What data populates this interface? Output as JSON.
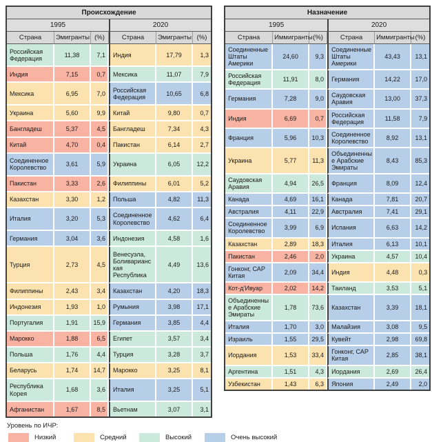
{
  "chart_data": {
    "type": "table",
    "colors": {
      "low": "#f9b3a2",
      "medium": "#fbe2af",
      "high": "#cce9de",
      "very_high": "#b7cee9",
      "header_bg": "#d9d9d9",
      "border_dark": "#3f3f3f"
    },
    "tables": [
      {
        "title": "Происхождение",
        "groups": [
          {
            "year": "1995",
            "columns": [
              "Страна",
              "Эмигранты",
              "(%)"
            ],
            "rows": [
              {
                "country": "Российская Федерация",
                "value": "11,38",
                "pct": "7,1",
                "hdi": "high"
              },
              {
                "country": "Индия",
                "value": "7,15",
                "pct": "0,7",
                "hdi": "low"
              },
              {
                "country": "Мексика",
                "value": "6,95",
                "pct": "7,0",
                "hdi": "medium"
              },
              {
                "country": "Украина",
                "value": "5,60",
                "pct": "9,9",
                "hdi": "medium"
              },
              {
                "country": "Бангладеш",
                "value": "5,37",
                "pct": "4,5",
                "hdi": "low"
              },
              {
                "country": "Китай",
                "value": "4,70",
                "pct": "0,4",
                "hdi": "low"
              },
              {
                "country": "Соединенное Королевство",
                "value": "3,61",
                "pct": "5,9",
                "hdi": "very_high"
              },
              {
                "country": "Пакистан",
                "value": "3,33",
                "pct": "2,6",
                "hdi": "low"
              },
              {
                "country": "Казахстан",
                "value": "3,30",
                "pct": "1,2",
                "hdi": "medium"
              },
              {
                "country": "Италия",
                "value": "3,20",
                "pct": "5,3",
                "hdi": "very_high"
              },
              {
                "country": "Германия",
                "value": "3,04",
                "pct": "3,6",
                "hdi": "very_high"
              },
              {
                "country": "Турция",
                "value": "2,73",
                "pct": "4,5",
                "hdi": "medium"
              },
              {
                "country": "Филиппины",
                "value": "2,43",
                "pct": "3,4",
                "hdi": "medium"
              },
              {
                "country": "Индонезия",
                "value": "1,93",
                "pct": "1,0",
                "hdi": "medium"
              },
              {
                "country": "Португалия",
                "value": "1,91",
                "pct": "15,9",
                "hdi": "high"
              },
              {
                "country": "Марокко",
                "value": "1,88",
                "pct": "6,5",
                "hdi": "low"
              },
              {
                "country": "Польша",
                "value": "1,76",
                "pct": "4,4",
                "hdi": "high"
              },
              {
                "country": "Беларусь",
                "value": "1,74",
                "pct": "14,7",
                "hdi": "medium"
              },
              {
                "country": "Республика Корея",
                "value": "1,68",
                "pct": "3,6",
                "hdi": "high"
              },
              {
                "country": "Афганистан",
                "value": "1,67",
                "pct": "8,5",
                "hdi": "low"
              }
            ]
          },
          {
            "year": "2020",
            "columns": [
              "Страна",
              "Эмигранты",
              "(%)"
            ],
            "rows": [
              {
                "country": "Индия",
                "value": "17,79",
                "pct": "1,3",
                "hdi": "medium"
              },
              {
                "country": "Мексика",
                "value": "11,07",
                "pct": "7,9",
                "hdi": "high"
              },
              {
                "country": "Российская Федерация",
                "value": "10,65",
                "pct": "6,8",
                "hdi": "very_high"
              },
              {
                "country": "Китай",
                "value": "9,80",
                "pct": "0,7",
                "hdi": "medium"
              },
              {
                "country": "Бангладеш",
                "value": "7,34",
                "pct": "4,3",
                "hdi": "medium"
              },
              {
                "country": "Пакистан",
                "value": "6,14",
                "pct": "2,7",
                "hdi": "medium"
              },
              {
                "country": "Украина",
                "value": "6,05",
                "pct": "12,2",
                "hdi": "high"
              },
              {
                "country": "Филиппины",
                "value": "6,01",
                "pct": "5,2",
                "hdi": "medium"
              },
              {
                "country": "Польша",
                "value": "4,82",
                "pct": "11,3",
                "hdi": "very_high"
              },
              {
                "country": "Соединенное Королевство",
                "value": "4,62",
                "pct": "6,4",
                "hdi": "very_high"
              },
              {
                "country": "Индонезия",
                "value": "4,58",
                "pct": "1,6",
                "hdi": "high"
              },
              {
                "country": "Венесуэла, Боливарианская Республика",
                "value": "4,49",
                "pct": "13,6",
                "hdi": "high"
              },
              {
                "country": "Казахстан",
                "value": "4,20",
                "pct": "18,3",
                "hdi": "very_high"
              },
              {
                "country": "Румыния",
                "value": "3,98",
                "pct": "17,1",
                "hdi": "very_high"
              },
              {
                "country": "Германия",
                "value": "3,85",
                "pct": "4,4",
                "hdi": "very_high"
              },
              {
                "country": "Египет",
                "value": "3,57",
                "pct": "3,4",
                "hdi": "high"
              },
              {
                "country": "Турция",
                "value": "3,28",
                "pct": "3,7",
                "hdi": "high"
              },
              {
                "country": "Марокко",
                "value": "3,25",
                "pct": "8,1",
                "hdi": "medium"
              },
              {
                "country": "Италия",
                "value": "3,25",
                "pct": "5,1",
                "hdi": "very_high"
              },
              {
                "country": "Вьетнам",
                "value": "3,07",
                "pct": "3,1",
                "hdi": "high"
              }
            ]
          }
        ]
      },
      {
        "title": "Назначение",
        "groups": [
          {
            "year": "1995",
            "columns": [
              "Страна",
              "Иммигранты",
              "(%)"
            ],
            "rows": [
              {
                "country": "Соединенные Штаты Америки",
                "value": "24,60",
                "pct": "9,3",
                "hdi": "very_high"
              },
              {
                "country": "Российская Федерация",
                "value": "11,91",
                "pct": "8,0",
                "hdi": "high"
              },
              {
                "country": "Германия",
                "value": "7,28",
                "pct": "9,0",
                "hdi": "very_high"
              },
              {
                "country": "Индия",
                "value": "6,69",
                "pct": "0,7",
                "hdi": "low"
              },
              {
                "country": "Франция",
                "value": "5,96",
                "pct": "10,3",
                "hdi": "very_high"
              },
              {
                "country": "Украина",
                "value": "5,77",
                "pct": "11,3",
                "hdi": "medium"
              },
              {
                "country": "Саудовская Аравия",
                "value": "4,94",
                "pct": "26,5",
                "hdi": "high"
              },
              {
                "country": "Канада",
                "value": "4,69",
                "pct": "16,1",
                "hdi": "very_high"
              },
              {
                "country": "Австралия",
                "value": "4,11",
                "pct": "22,9",
                "hdi": "very_high"
              },
              {
                "country": "Соединенное Королевство",
                "value": "3,99",
                "pct": "6,9",
                "hdi": "very_high"
              },
              {
                "country": "Казахстан",
                "value": "2,89",
                "pct": "18,3",
                "hdi": "medium"
              },
              {
                "country": "Пакистан",
                "value": "2,46",
                "pct": "2,0",
                "hdi": "low"
              },
              {
                "country": "Гонконг, САР Китая",
                "value": "2,09",
                "pct": "34,4",
                "hdi": "very_high"
              },
              {
                "country": "Кот-д’Ивуар",
                "value": "2,02",
                "pct": "14,2",
                "hdi": "low"
              },
              {
                "country": "Объединенные Арабские Эмираты",
                "value": "1,78",
                "pct": "73,6",
                "hdi": "high"
              },
              {
                "country": "Италия",
                "value": "1,70",
                "pct": "3,0",
                "hdi": "very_high"
              },
              {
                "country": "Израиль",
                "value": "1,55",
                "pct": "29,5",
                "hdi": "very_high"
              },
              {
                "country": "Иордания",
                "value": "1,53",
                "pct": "33,4",
                "hdi": "medium"
              },
              {
                "country": "Аргентина",
                "value": "1,51",
                "pct": "4,3",
                "hdi": "high"
              },
              {
                "country": "Узбекистан",
                "value": "1,43",
                "pct": "6,3",
                "hdi": "medium"
              }
            ]
          },
          {
            "year": "2020",
            "columns": [
              "Страна",
              "Иммигранты",
              "(%)"
            ],
            "rows": [
              {
                "country": "Соединенные Штаты Америки",
                "value": "43,43",
                "pct": "13,1",
                "hdi": "very_high"
              },
              {
                "country": "Германия",
                "value": "14,22",
                "pct": "17,0",
                "hdi": "very_high"
              },
              {
                "country": "Саудовская Аравия",
                "value": "13,00",
                "pct": "37,3",
                "hdi": "very_high"
              },
              {
                "country": "Российская Федерация",
                "value": "11,58",
                "pct": "7,9",
                "hdi": "very_high"
              },
              {
                "country": "Соединенное Королевство",
                "value": "8,92",
                "pct": "13,1",
                "hdi": "very_high"
              },
              {
                "country": "Объединенные Арабские Эмираты",
                "value": "8,43",
                "pct": "85,3",
                "hdi": "very_high"
              },
              {
                "country": "Франция",
                "value": "8,09",
                "pct": "12,4",
                "hdi": "very_high"
              },
              {
                "country": "Канада",
                "value": "7,81",
                "pct": "20,7",
                "hdi": "very_high"
              },
              {
                "country": "Австралия",
                "value": "7,41",
                "pct": "29,1",
                "hdi": "very_high"
              },
              {
                "country": "Испания",
                "value": "6,63",
                "pct": "14,2",
                "hdi": "very_high"
              },
              {
                "country": "Италия",
                "value": "6,13",
                "pct": "10,1",
                "hdi": "very_high"
              },
              {
                "country": "Украина",
                "value": "4,57",
                "pct": "10,4",
                "hdi": "high"
              },
              {
                "country": "Индия",
                "value": "4,48",
                "pct": "0,3",
                "hdi": "medium"
              },
              {
                "country": "Таиланд",
                "value": "3,53",
                "pct": "5,1",
                "hdi": "high"
              },
              {
                "country": "Казахстан",
                "value": "3,39",
                "pct": "18,1",
                "hdi": "very_high"
              },
              {
                "country": "Малайзия",
                "value": "3,08",
                "pct": "9,5",
                "hdi": "very_high"
              },
              {
                "country": "Кувейт",
                "value": "2,98",
                "pct": "69,8",
                "hdi": "very_high"
              },
              {
                "country": "Гонконг, САР Китая",
                "value": "2,85",
                "pct": "38,1",
                "hdi": "very_high"
              },
              {
                "country": "Иордания",
                "value": "2,69",
                "pct": "26,4",
                "hdi": "high"
              },
              {
                "country": "Япония",
                "value": "2,49",
                "pct": "2,0",
                "hdi": "very_high"
              }
            ]
          }
        ]
      }
    ],
    "legend": {
      "title": "Уровень по ИЧР:",
      "items": [
        {
          "label": "Низкий",
          "hdi": "low"
        },
        {
          "label": "Средний",
          "hdi": "medium"
        },
        {
          "label": "Высокий",
          "hdi": "high"
        },
        {
          "label": "Очень высокий",
          "hdi": "very_high"
        }
      ]
    }
  }
}
